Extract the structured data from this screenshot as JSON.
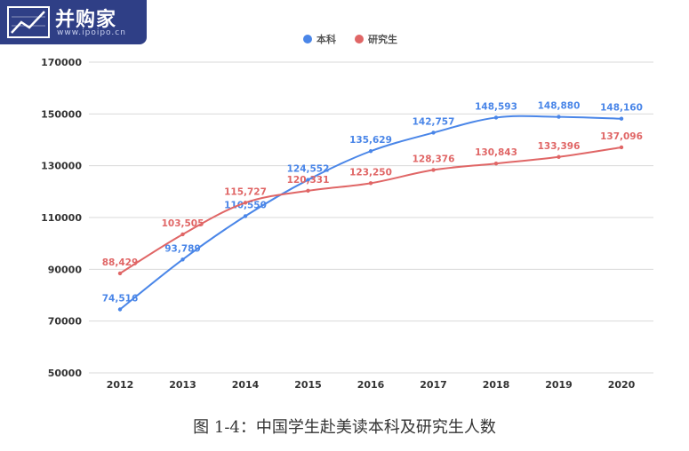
{
  "logo": {
    "brand": "并购家",
    "url": "www.ipoipo.cn"
  },
  "caption": "图 1-4：中国学生赴美读本科及研究生人数",
  "colors": {
    "undergrad": "#4a86e8",
    "graduate": "#e06666",
    "grid": "#d9d9d9",
    "axis_text": "#333333"
  },
  "chart_data": {
    "type": "line",
    "title": "",
    "xlabel": "",
    "ylabel": "",
    "legend_position": "top-center",
    "grid": true,
    "ylim": [
      50000,
      170000
    ],
    "yticks": [
      "50000",
      "70000",
      "90000",
      "110000",
      "130000",
      "150000",
      "170000"
    ],
    "x": [
      "2012",
      "2013",
      "2014",
      "2015",
      "2016",
      "2017",
      "2018",
      "2019",
      "2020"
    ],
    "series": [
      {
        "name": "本科",
        "values": [
          74516,
          93789,
          110550,
          124552,
          135629,
          142757,
          148593,
          148880,
          148160
        ],
        "labels": [
          "74,516",
          "93,789",
          "110,550",
          "124,552",
          "135,629",
          "142,757",
          "148,593",
          "148,880",
          "148,160"
        ]
      },
      {
        "name": "研究生",
        "values": [
          88429,
          103505,
          115727,
          120331,
          123250,
          128376,
          130843,
          133396,
          137096
        ],
        "labels": [
          "88,429",
          "103,505",
          "115,727",
          "120,331",
          "123,250",
          "128,376",
          "130,843",
          "133,396",
          "137,096"
        ]
      }
    ]
  }
}
